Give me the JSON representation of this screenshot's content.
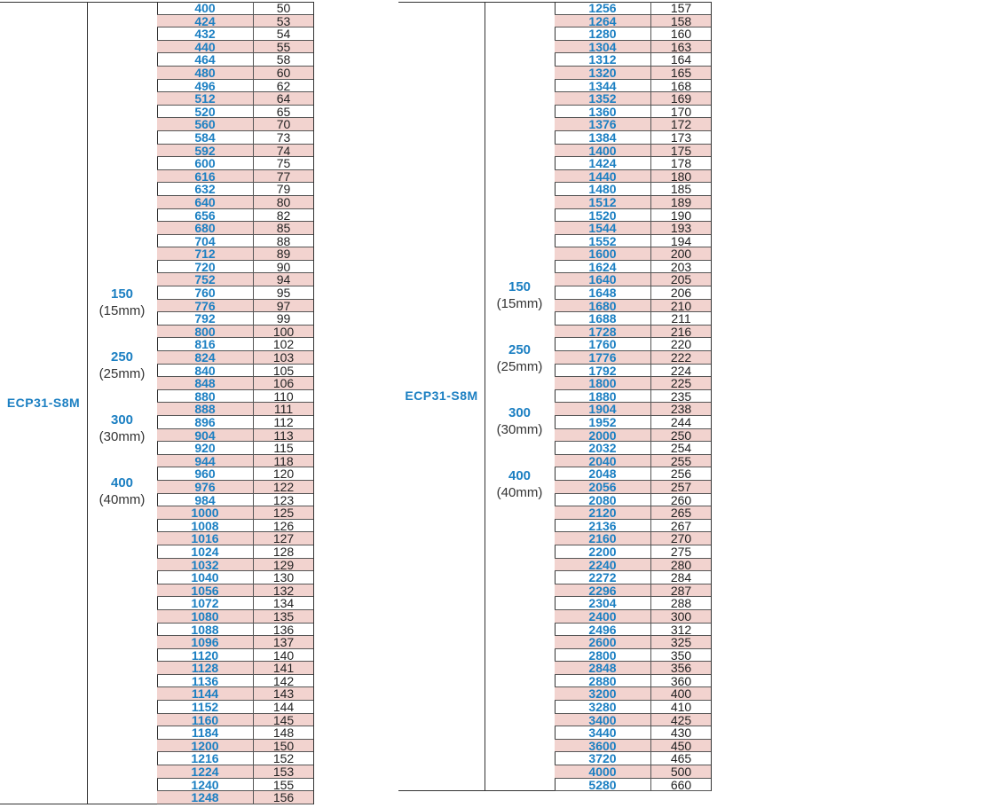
{
  "left": {
    "model": "ECP31-S8M",
    "widths": [
      {
        "code": "150",
        "mm": "(15mm)"
      },
      {
        "code": "250",
        "mm": "(25mm)"
      },
      {
        "code": "300",
        "mm": "(30mm)"
      },
      {
        "code": "400",
        "mm": "(40mm)"
      }
    ],
    "rows": [
      [
        "400",
        "50"
      ],
      [
        "424",
        "53"
      ],
      [
        "432",
        "54"
      ],
      [
        "440",
        "55"
      ],
      [
        "464",
        "58"
      ],
      [
        "480",
        "60"
      ],
      [
        "496",
        "62"
      ],
      [
        "512",
        "64"
      ],
      [
        "520",
        "65"
      ],
      [
        "560",
        "70"
      ],
      [
        "584",
        "73"
      ],
      [
        "592",
        "74"
      ],
      [
        "600",
        "75"
      ],
      [
        "616",
        "77"
      ],
      [
        "632",
        "79"
      ],
      [
        "640",
        "80"
      ],
      [
        "656",
        "82"
      ],
      [
        "680",
        "85"
      ],
      [
        "704",
        "88"
      ],
      [
        "712",
        "89"
      ],
      [
        "720",
        "90"
      ],
      [
        "752",
        "94"
      ],
      [
        "760",
        "95"
      ],
      [
        "776",
        "97"
      ],
      [
        "792",
        "99"
      ],
      [
        "800",
        "100"
      ],
      [
        "816",
        "102"
      ],
      [
        "824",
        "103"
      ],
      [
        "840",
        "105"
      ],
      [
        "848",
        "106"
      ],
      [
        "880",
        "110"
      ],
      [
        "888",
        "111"
      ],
      [
        "896",
        "112"
      ],
      [
        "904",
        "113"
      ],
      [
        "920",
        "115"
      ],
      [
        "944",
        "118"
      ],
      [
        "960",
        "120"
      ],
      [
        "976",
        "122"
      ],
      [
        "984",
        "123"
      ],
      [
        "1000",
        "125"
      ],
      [
        "1008",
        "126"
      ],
      [
        "1016",
        "127"
      ],
      [
        "1024",
        "128"
      ],
      [
        "1032",
        "129"
      ],
      [
        "1040",
        "130"
      ],
      [
        "1056",
        "132"
      ],
      [
        "1072",
        "134"
      ],
      [
        "1080",
        "135"
      ],
      [
        "1088",
        "136"
      ],
      [
        "1096",
        "137"
      ],
      [
        "1120",
        "140"
      ],
      [
        "1128",
        "141"
      ],
      [
        "1136",
        "142"
      ],
      [
        "1144",
        "143"
      ],
      [
        "1152",
        "144"
      ],
      [
        "1160",
        "145"
      ],
      [
        "1184",
        "148"
      ],
      [
        "1200",
        "150"
      ],
      [
        "1216",
        "152"
      ],
      [
        "1224",
        "153"
      ],
      [
        "1240",
        "155"
      ],
      [
        "1248",
        "156"
      ]
    ]
  },
  "right": {
    "model": "ECP31-S8M",
    "widths": [
      {
        "code": "150",
        "mm": "(15mm)"
      },
      {
        "code": "250",
        "mm": "(25mm)"
      },
      {
        "code": "300",
        "mm": "(30mm)"
      },
      {
        "code": "400",
        "mm": "(40mm)"
      }
    ],
    "rows": [
      [
        "1256",
        "157"
      ],
      [
        "1264",
        "158"
      ],
      [
        "1280",
        "160"
      ],
      [
        "1304",
        "163"
      ],
      [
        "1312",
        "164"
      ],
      [
        "1320",
        "165"
      ],
      [
        "1344",
        "168"
      ],
      [
        "1352",
        "169"
      ],
      [
        "1360",
        "170"
      ],
      [
        "1376",
        "172"
      ],
      [
        "1384",
        "173"
      ],
      [
        "1400",
        "175"
      ],
      [
        "1424",
        "178"
      ],
      [
        "1440",
        "180"
      ],
      [
        "1480",
        "185"
      ],
      [
        "1512",
        "189"
      ],
      [
        "1520",
        "190"
      ],
      [
        "1544",
        "193"
      ],
      [
        "1552",
        "194"
      ],
      [
        "1600",
        "200"
      ],
      [
        "1624",
        "203"
      ],
      [
        "1640",
        "205"
      ],
      [
        "1648",
        "206"
      ],
      [
        "1680",
        "210"
      ],
      [
        "1688",
        "211"
      ],
      [
        "1728",
        "216"
      ],
      [
        "1760",
        "220"
      ],
      [
        "1776",
        "222"
      ],
      [
        "1792",
        "224"
      ],
      [
        "1800",
        "225"
      ],
      [
        "1880",
        "235"
      ],
      [
        "1904",
        "238"
      ],
      [
        "1952",
        "244"
      ],
      [
        "2000",
        "250"
      ],
      [
        "2032",
        "254"
      ],
      [
        "2040",
        "255"
      ],
      [
        "2048",
        "256"
      ],
      [
        "2056",
        "257"
      ],
      [
        "2080",
        "260"
      ],
      [
        "2120",
        "265"
      ],
      [
        "2136",
        "267"
      ],
      [
        "2160",
        "270"
      ],
      [
        "2200",
        "275"
      ],
      [
        "2240",
        "280"
      ],
      [
        "2272",
        "284"
      ],
      [
        "2296",
        "287"
      ],
      [
        "2304",
        "288"
      ],
      [
        "2400",
        "300"
      ],
      [
        "2496",
        "312"
      ],
      [
        "2600",
        "325"
      ],
      [
        "2800",
        "350"
      ],
      [
        "2848",
        "356"
      ],
      [
        "2880",
        "360"
      ],
      [
        "3200",
        "400"
      ],
      [
        "3280",
        "410"
      ],
      [
        "3400",
        "425"
      ],
      [
        "3440",
        "430"
      ],
      [
        "3600",
        "450"
      ],
      [
        "3720",
        "465"
      ],
      [
        "4000",
        "500"
      ],
      [
        "5280",
        "660"
      ]
    ]
  },
  "colors": {
    "accent": "#1b7fc2",
    "shade": "#f2d3cf"
  }
}
